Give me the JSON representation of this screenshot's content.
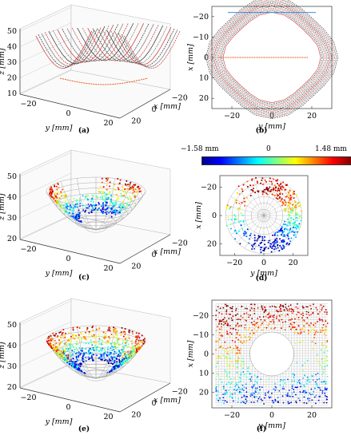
{
  "captions": [
    "(a)",
    "(b)",
    "(c)",
    "(d)",
    "(e)",
    "(f)"
  ],
  "axis_labels": {
    "x": "x [mm]",
    "y": "y [mm]",
    "z": "z [mm]"
  },
  "colorbar": {
    "min_label": "−1.58 mm",
    "mid_label": "0",
    "max_label": "1.48 mm",
    "min": -1.58,
    "max": 1.48,
    "colors": [
      "#00008f",
      "#0000ff",
      "#0080ff",
      "#00ffff",
      "#80ff80",
      "#ffff00",
      "#ff8000",
      "#ff0000",
      "#800000"
    ]
  },
  "chart_data": [
    {
      "panel": "a",
      "type": "3d-surface",
      "title": "",
      "xlabel": "x [mm]",
      "ylabel": "y [mm]",
      "zlabel": "z [mm]",
      "y_ticks": [
        "−20",
        "0",
        "20"
      ],
      "x_ticks": [
        "20",
        "0",
        "−20"
      ],
      "z_ticks": [
        "50",
        "40",
        "30",
        "20",
        "10"
      ],
      "zlim": [
        10,
        50
      ]
    },
    {
      "panel": "b",
      "type": "line",
      "title": "",
      "xlabel": "y [mm]",
      "ylabel": "x [mm]",
      "x_ticks": [
        "−20",
        "0",
        "20"
      ],
      "y_ticks": [
        "−20",
        "−10",
        "0",
        "10",
        "20"
      ],
      "xlim": [
        -30,
        30
      ],
      "ylim": [
        -25,
        25
      ]
    },
    {
      "panel": "c",
      "type": "3d-scatter",
      "title": "",
      "xlabel": "x [mm]",
      "ylabel": "y [mm]",
      "zlabel": "z [mm]",
      "y_ticks": [
        "−20",
        "0",
        "20"
      ],
      "x_ticks": [
        "20",
        "0",
        "−20"
      ],
      "z_ticks": [
        "50",
        "40",
        "30",
        "20"
      ],
      "zlim": [
        20,
        50
      ],
      "color_range": [
        -1.58,
        1.48
      ]
    },
    {
      "panel": "d",
      "type": "scatter",
      "title": "",
      "xlabel": "y [mm]",
      "ylabel": "x [mm]",
      "x_ticks": [
        "−20",
        "0",
        "20"
      ],
      "y_ticks": [
        "−20",
        "0",
        "20"
      ],
      "color_range": [
        -1.58,
        1.48
      ]
    },
    {
      "panel": "e",
      "type": "3d-scatter",
      "title": "",
      "xlabel": "x [mm]",
      "ylabel": "y [mm]",
      "zlabel": "z [mm]",
      "y_ticks": [
        "−20",
        "0",
        "20"
      ],
      "x_ticks": [
        "20",
        "0",
        "−20"
      ],
      "z_ticks": [
        "50",
        "40",
        "30",
        "20"
      ],
      "zlim": [
        20,
        50
      ],
      "color_range": [
        -1.58,
        1.48
      ]
    },
    {
      "panel": "f",
      "type": "scatter",
      "title": "",
      "xlabel": "y [mm]",
      "ylabel": "x [mm]",
      "x_ticks": [
        "−20",
        "0",
        "20"
      ],
      "y_ticks": [
        "−20",
        "−10",
        "0",
        "10",
        "20"
      ],
      "color_range": [
        -1.58,
        1.48
      ]
    }
  ]
}
